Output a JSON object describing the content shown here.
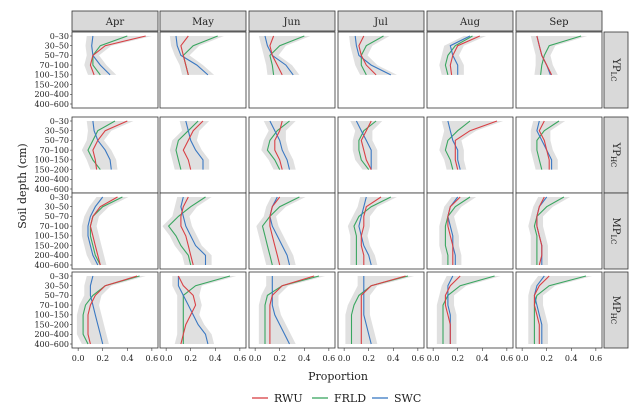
{
  "chart_data": {
    "type": "line",
    "xlabel": "Proportion",
    "ylabel": "Soil depth (cm)",
    "xlim": [
      -0.05,
      0.65
    ],
    "x_ticks": [
      "0.0",
      "0.2",
      "0.4",
      "0.6"
    ],
    "x_tick_values": [
      0,
      0.2,
      0.4,
      0.6
    ],
    "depths": [
      "0–30",
      "30–50",
      "50–70",
      "70–100",
      "100–150",
      "150–200",
      "200–400",
      "400–600"
    ],
    "months": [
      "Apr",
      "May",
      "Jun",
      "Jul",
      "Aug",
      "Sep"
    ],
    "legend_position": "bottom",
    "legend": [
      {
        "name": "RWU",
        "color": "#d94045"
      },
      {
        "name": "FRLD",
        "color": "#3aa660"
      },
      {
        "name": "SWC",
        "color": "#3a78c2"
      }
    ],
    "rows": [
      {
        "label_main": "YP",
        "label_sub": "LC",
        "panels": [
          {
            "month": "Apr",
            "RWU": [
              0.55,
              0.22,
              0.12,
              0.1,
              0.13,
              null,
              null,
              null
            ],
            "FRLD": [
              0.4,
              0.18,
              0.12,
              0.12,
              0.18,
              null,
              null,
              null
            ],
            "SWC": [
              0.12,
              0.11,
              0.12,
              0.18,
              0.26,
              null,
              null,
              null
            ]
          },
          {
            "month": "May",
            "RWU": [
              0.18,
              0.12,
              0.14,
              0.16,
              0.18,
              null,
              null,
              null
            ],
            "FRLD": [
              0.42,
              0.22,
              0.14,
              0.16,
              0.18,
              null,
              null,
              null
            ],
            "SWC": [
              0.08,
              0.09,
              0.12,
              0.25,
              0.34,
              null,
              null,
              null
            ]
          },
          {
            "month": "Jun",
            "RWU": [
              0.15,
              0.12,
              0.14,
              0.18,
              0.22,
              null,
              null,
              null
            ],
            "FRLD": [
              0.4,
              0.2,
              0.12,
              0.14,
              0.15,
              null,
              null,
              null
            ],
            "SWC": [
              0.08,
              0.1,
              0.14,
              0.25,
              0.31,
              null,
              null,
              null
            ]
          },
          {
            "month": "Jul",
            "RWU": [
              0.16,
              0.12,
              0.14,
              0.18,
              0.26,
              null,
              null,
              null
            ],
            "FRLD": [
              0.32,
              0.18,
              0.14,
              0.14,
              0.18,
              null,
              null,
              null
            ],
            "SWC": [
              0.09,
              0.1,
              0.12,
              0.22,
              0.38,
              null,
              null,
              null
            ]
          },
          {
            "month": "Aug",
            "RWU": [
              0.38,
              0.2,
              0.16,
              0.14,
              0.15,
              null,
              null,
              null
            ],
            "FRLD": [
              0.32,
              0.18,
              0.12,
              0.1,
              0.12,
              null,
              null,
              null
            ],
            "SWC": [
              0.3,
              0.14,
              0.16,
              0.2,
              0.2,
              null,
              null,
              null
            ]
          },
          {
            "month": "Sep",
            "RWU": [
              0.12,
              0.14,
              0.16,
              0.2,
              0.24,
              null,
              null,
              null
            ],
            "FRLD": [
              0.48,
              0.22,
              0.18,
              0.16,
              0.15,
              null,
              null,
              null
            ],
            "SWC": [
              0.12,
              0.14,
              0.16,
              0.2,
              0.23,
              null,
              null,
              null
            ]
          }
        ]
      },
      {
        "label_main": "YP",
        "label_sub": "HC",
        "panels": [
          {
            "month": "Apr",
            "RWU": [
              0.4,
              0.22,
              0.16,
              0.12,
              0.14,
              0.15,
              null,
              null
            ],
            "FRLD": [
              0.3,
              0.16,
              0.12,
              0.08,
              0.12,
              0.18,
              null,
              null
            ],
            "SWC": [
              0.12,
              0.13,
              0.16,
              0.22,
              0.26,
              0.27,
              null,
              null
            ]
          },
          {
            "month": "May",
            "RWU": [
              0.3,
              0.22,
              0.18,
              0.14,
              0.18,
              0.2,
              null,
              null
            ],
            "FRLD": [
              0.26,
              0.18,
              0.1,
              0.08,
              0.1,
              0.12,
              null,
              null
            ],
            "SWC": [
              0.16,
              0.18,
              0.2,
              0.24,
              0.3,
              0.3,
              null,
              null
            ]
          },
          {
            "month": "Jun",
            "RWU": [
              0.22,
              0.2,
              0.16,
              0.16,
              0.2,
              0.22,
              null,
              null
            ],
            "FRLD": [
              0.28,
              0.18,
              0.12,
              0.1,
              0.16,
              0.2,
              null,
              null
            ],
            "SWC": [
              0.12,
              0.16,
              0.2,
              0.22,
              0.26,
              0.28,
              null,
              null
            ]
          },
          {
            "month": "Jul",
            "RWU": [
              0.22,
              0.18,
              0.14,
              0.16,
              0.18,
              0.22,
              null,
              null
            ],
            "FRLD": [
              0.26,
              0.16,
              0.12,
              0.12,
              0.14,
              0.2,
              null,
              null
            ],
            "SWC": [
              0.1,
              0.14,
              0.18,
              0.22,
              0.22,
              0.22,
              null,
              null
            ]
          },
          {
            "month": "Aug",
            "RWU": [
              0.52,
              0.3,
              0.18,
              0.18,
              0.18,
              0.2,
              null,
              null
            ],
            "FRLD": [
              0.3,
              0.2,
              0.12,
              0.1,
              0.14,
              0.16,
              null,
              null
            ],
            "SWC": [
              0.12,
              0.14,
              0.16,
              0.2,
              0.2,
              0.22,
              null,
              null
            ]
          },
          {
            "month": "Sep",
            "RWU": [
              0.18,
              0.14,
              0.18,
              0.2,
              0.22,
              0.22,
              null,
              null
            ],
            "FRLD": [
              0.3,
              0.18,
              0.12,
              0.12,
              0.14,
              0.16,
              null,
              null
            ],
            "SWC": [
              0.14,
              0.12,
              0.16,
              0.2,
              0.24,
              0.24,
              null,
              null
            ]
          }
        ]
      },
      {
        "label_main": "MP",
        "label_sub": "LC",
        "panels": [
          {
            "month": "Apr",
            "RWU": [
              0.32,
              0.18,
              0.12,
              0.1,
              0.12,
              0.14,
              0.16,
              0.18
            ],
            "FRLD": [
              0.36,
              0.2,
              0.12,
              0.1,
              0.1,
              0.12,
              0.14,
              0.18
            ],
            "SWC": [
              0.2,
              0.14,
              0.1,
              0.08,
              0.08,
              0.1,
              0.12,
              0.16
            ]
          },
          {
            "month": "May",
            "RWU": [
              0.18,
              0.14,
              0.12,
              0.12,
              0.16,
              0.18,
              0.2,
              0.22
            ],
            "FRLD": [
              0.32,
              0.2,
              0.1,
              0.02,
              0.08,
              0.12,
              0.18,
              0.2
            ],
            "SWC": [
              0.14,
              0.12,
              0.14,
              0.16,
              0.2,
              0.24,
              0.32,
              0.32
            ]
          },
          {
            "month": "Jun",
            "RWU": [
              0.2,
              0.14,
              0.12,
              0.12,
              0.14,
              0.16,
              0.18,
              0.2
            ],
            "FRLD": [
              0.36,
              0.2,
              0.12,
              0.06,
              0.08,
              0.1,
              0.12,
              0.14
            ],
            "SWC": [
              0.18,
              0.14,
              0.12,
              0.14,
              0.18,
              0.22,
              0.26,
              0.28
            ]
          },
          {
            "month": "Jul",
            "RWU": [
              0.3,
              0.18,
              0.16,
              0.16,
              0.14,
              0.14,
              0.16,
              0.16
            ],
            "FRLD": [
              0.38,
              0.22,
              0.12,
              0.08,
              0.1,
              0.1,
              0.1,
              0.1
            ],
            "SWC": [
              0.18,
              0.16,
              0.14,
              0.12,
              0.14,
              0.16,
              0.2,
              0.22
            ]
          },
          {
            "month": "Aug",
            "RWU": [
              0.22,
              0.14,
              0.12,
              0.12,
              0.14,
              0.16,
              0.16,
              0.16
            ],
            "FRLD": [
              0.3,
              0.18,
              0.12,
              0.1,
              0.1,
              0.1,
              0.12,
              0.12
            ],
            "SWC": [
              0.2,
              0.14,
              0.12,
              0.14,
              0.16,
              0.16,
              0.18,
              0.18
            ]
          },
          {
            "month": "Sep",
            "RWU": [
              0.18,
              0.14,
              0.12,
              0.12,
              0.14,
              0.16,
              0.16,
              0.14
            ],
            "FRLD": [
              0.34,
              0.2,
              0.12,
              0.1,
              0.12,
              0.12,
              0.12,
              0.12
            ],
            "SWC": [
              0.2,
              0.14,
              0.12,
              0.12,
              0.14,
              0.16,
              0.16,
              0.16
            ]
          }
        ]
      },
      {
        "label_main": "MP",
        "label_sub": "HC",
        "panels": [
          {
            "month": "Apr",
            "RWU": [
              0.48,
              0.22,
              0.14,
              0.1,
              0.08,
              0.08,
              0.08,
              0.1
            ],
            "FRLD": [
              0.5,
              0.22,
              0.12,
              0.06,
              0.04,
              0.04,
              0.04,
              0.08
            ],
            "SWC": [
              0.12,
              0.1,
              0.1,
              0.12,
              0.14,
              0.16,
              0.18,
              0.2
            ]
          },
          {
            "month": "May",
            "RWU": [
              0.1,
              0.14,
              0.22,
              0.24,
              0.2,
              0.16,
              0.14,
              0.12
            ],
            "FRLD": [
              0.52,
              0.24,
              0.14,
              0.14,
              0.14,
              0.14,
              0.14,
              0.14
            ],
            "SWC": [
              0.1,
              0.1,
              0.14,
              0.18,
              0.22,
              0.26,
              0.32,
              0.34
            ]
          },
          {
            "month": "Jun",
            "RWU": [
              0.48,
              0.22,
              0.14,
              0.12,
              0.12,
              0.12,
              0.12,
              0.12
            ],
            "FRLD": [
              0.52,
              0.22,
              0.1,
              0.08,
              0.08,
              0.08,
              0.08,
              0.08
            ],
            "SWC": [
              0.14,
              0.14,
              0.14,
              0.14,
              0.16,
              0.2,
              0.24,
              0.28
            ]
          },
          {
            "month": "Jul",
            "RWU": [
              0.5,
              0.22,
              0.14,
              0.14,
              0.14,
              0.14,
              0.14,
              0.14
            ],
            "FRLD": [
              0.52,
              0.22,
              0.12,
              0.08,
              0.06,
              0.06,
              0.06,
              0.06
            ],
            "SWC": [
              0.16,
              0.16,
              0.16,
              0.16,
              0.16,
              0.18,
              0.2,
              0.22
            ]
          },
          {
            "month": "Aug",
            "RWU": [
              0.22,
              0.14,
              0.1,
              0.1,
              0.12,
              0.14,
              0.14,
              0.14
            ],
            "FRLD": [
              0.5,
              0.22,
              0.12,
              0.08,
              0.08,
              0.08,
              0.08,
              0.08
            ],
            "SWC": [
              0.16,
              0.12,
              0.12,
              0.12,
              0.14,
              0.14,
              0.14,
              0.14
            ]
          },
          {
            "month": "Sep",
            "RWU": [
              0.22,
              0.14,
              0.1,
              0.1,
              0.12,
              0.14,
              0.14,
              0.14
            ],
            "FRLD": [
              0.52,
              0.22,
              0.12,
              0.1,
              0.1,
              0.1,
              0.1,
              0.1
            ],
            "SWC": [
              0.18,
              0.12,
              0.1,
              0.12,
              0.14,
              0.16,
              0.16,
              0.16
            ]
          }
        ]
      }
    ]
  }
}
